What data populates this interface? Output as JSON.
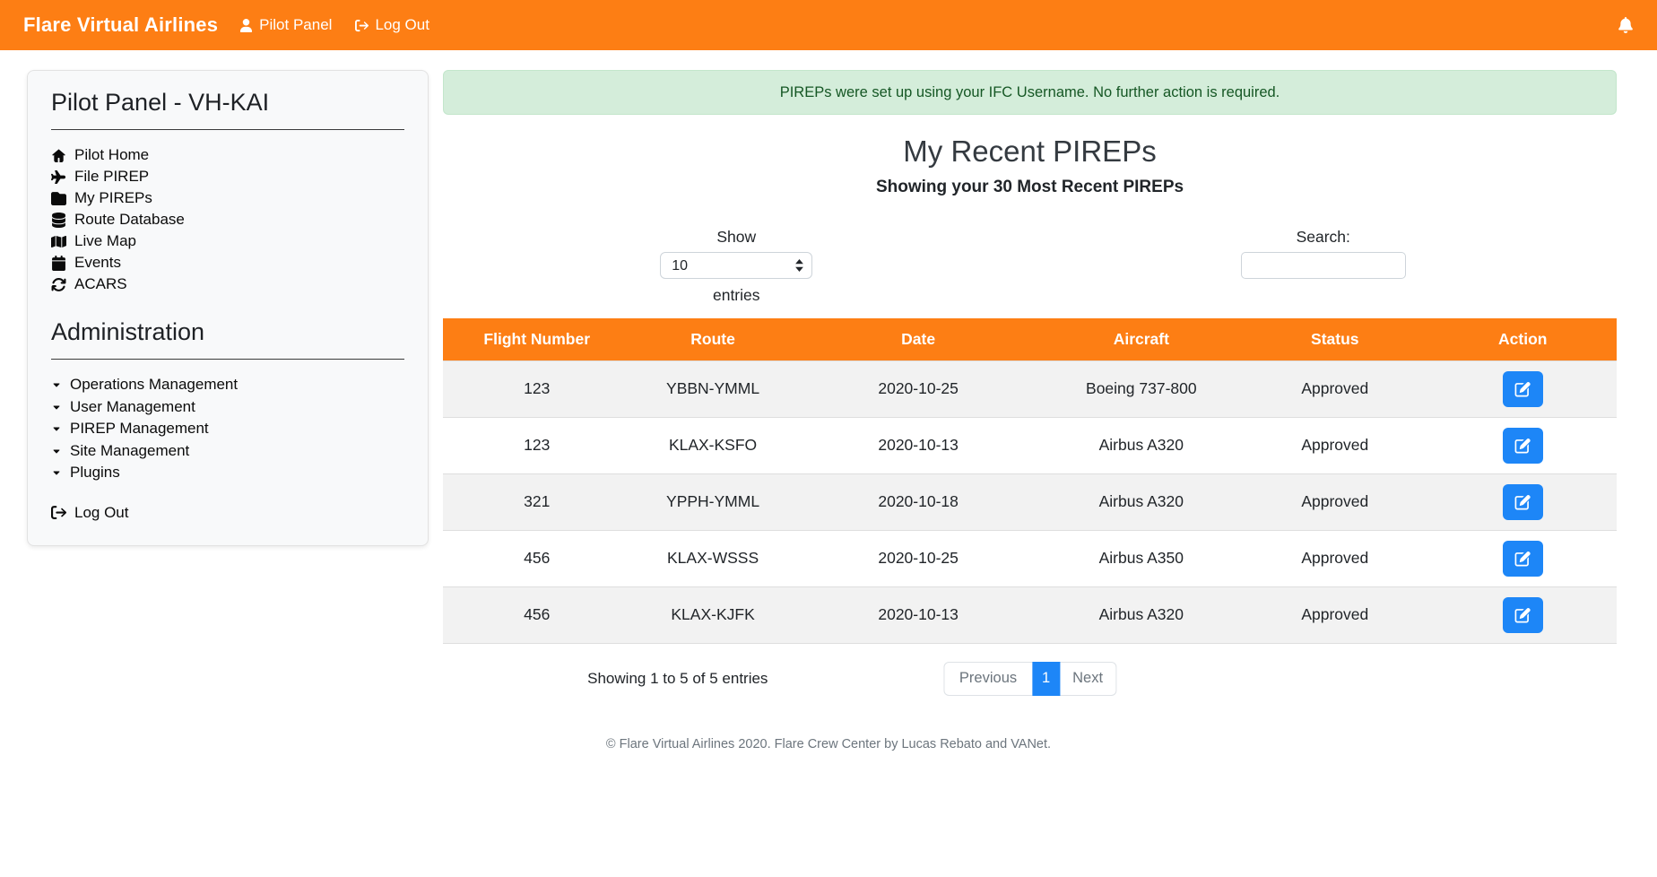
{
  "navbar": {
    "brand": "Flare Virtual Airlines",
    "pilot_panel_label": "Pilot Panel",
    "logout_label": "Log Out"
  },
  "sidebar": {
    "title": "Pilot Panel - VH-KAI",
    "items": [
      {
        "icon": "home-icon",
        "label": "Pilot Home"
      },
      {
        "icon": "plane-icon",
        "label": "File PIREP"
      },
      {
        "icon": "folder-icon",
        "label": "My PIREPs"
      },
      {
        "icon": "database-icon",
        "label": "Route Database"
      },
      {
        "icon": "map-icon",
        "label": "Live Map"
      },
      {
        "icon": "calendar-icon",
        "label": "Events"
      },
      {
        "icon": "sync-icon",
        "label": "ACARS"
      }
    ],
    "admin_title": "Administration",
    "admin_items": [
      {
        "icon": "caret-down-icon",
        "label": "Operations Management"
      },
      {
        "icon": "caret-down-icon",
        "label": "User Management"
      },
      {
        "icon": "caret-down-icon",
        "label": "PIREP Management"
      },
      {
        "icon": "caret-down-icon",
        "label": "Site Management"
      },
      {
        "icon": "caret-down-icon",
        "label": "Plugins"
      }
    ],
    "logout_label": "Log Out"
  },
  "main": {
    "alert_text": "PIREPs were set up using your IFC Username. No further action is required.",
    "title": "My Recent PIREPs",
    "subtitle": "Showing your 30 Most Recent PIREPs",
    "show_label": "Show",
    "entries_label": "entries",
    "page_length": "10",
    "search_label": "Search:",
    "search_value": "",
    "table": {
      "headers": [
        "Flight Number",
        "Route",
        "Date",
        "Aircraft",
        "Status",
        "Action"
      ],
      "rows": [
        {
          "flight_number": "123",
          "route": "YBBN-YMML",
          "date": "2020-10-25",
          "aircraft": "Boeing 737-800",
          "status": "Approved"
        },
        {
          "flight_number": "123",
          "route": "KLAX-KSFO",
          "date": "2020-10-13",
          "aircraft": "Airbus A320",
          "status": "Approved"
        },
        {
          "flight_number": "321",
          "route": "YPPH-YMML",
          "date": "2020-10-18",
          "aircraft": "Airbus A320",
          "status": "Approved"
        },
        {
          "flight_number": "456",
          "route": "KLAX-WSSS",
          "date": "2020-10-25",
          "aircraft": "Airbus A350",
          "status": "Approved"
        },
        {
          "flight_number": "456",
          "route": "KLAX-KJFK",
          "date": "2020-10-13",
          "aircraft": "Airbus A320",
          "status": "Approved"
        }
      ]
    },
    "info": "Showing 1 to 5 of 5 entries",
    "pagination": {
      "previous": "Previous",
      "current": "1",
      "next": "Next"
    }
  },
  "footer": {
    "text": "© Flare Virtual Airlines 2020. Flare Crew Center by Lucas Rebato and VANet."
  },
  "colors": {
    "accent_orange": "#fd7e14",
    "alert_bg": "#d4edda",
    "alert_text": "#155724",
    "primary_blue": "#1d86f7",
    "stripe_gray": "#f2f2f2"
  }
}
